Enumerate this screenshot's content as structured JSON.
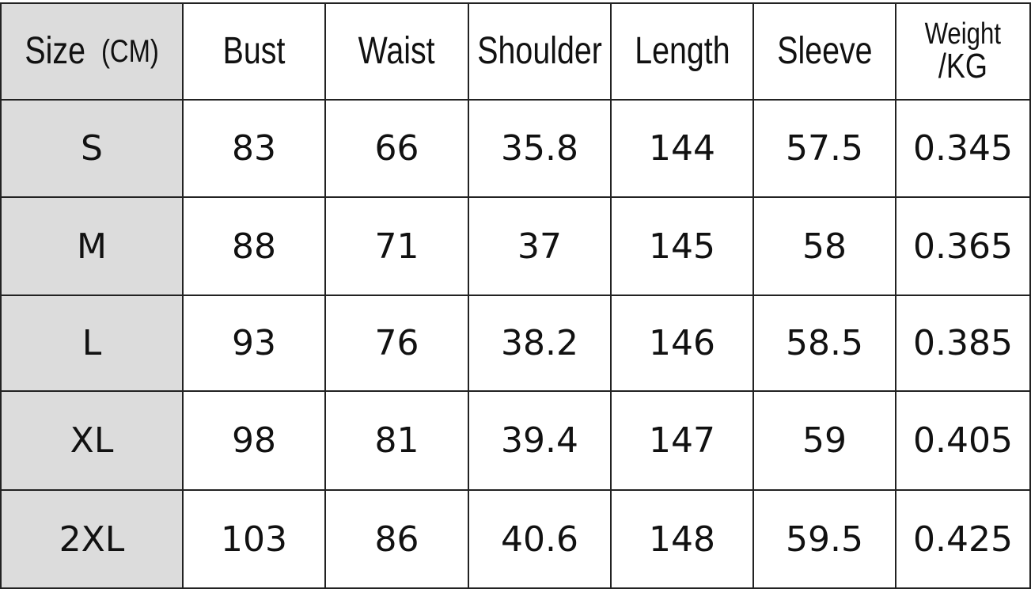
{
  "table": {
    "header": [
      [
        "Size",
        "(CM)"
      ],
      [
        "Bust"
      ],
      [
        "Waist"
      ],
      [
        "Shoulder"
      ],
      [
        "Length"
      ],
      [
        "Sleeve"
      ],
      [
        "Weight",
        "/KG"
      ]
    ],
    "rows": [
      [
        "S",
        83,
        66,
        35.8,
        144,
        57.5,
        0.345
      ],
      [
        "M",
        88,
        71,
        37,
        145,
        58,
        0.365
      ],
      [
        "L",
        93,
        76,
        38.2,
        146,
        58.5,
        0.385
      ],
      [
        "XL",
        98,
        81,
        39.4,
        147,
        59,
        0.405
      ],
      [
        "2XL",
        103,
        86,
        40.6,
        148,
        59.5,
        0.425
      ]
    ]
  }
}
